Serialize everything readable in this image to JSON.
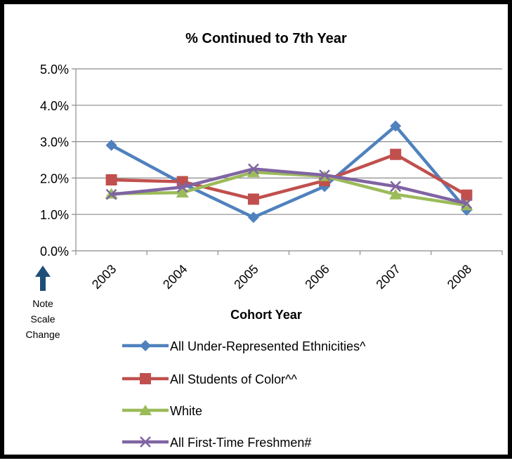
{
  "chart_data": {
    "type": "line",
    "title": "% Continued to 7th Year",
    "xlabel": "Cohort Year",
    "ylabel": "",
    "categories": [
      "2003",
      "2004",
      "2005",
      "2006",
      "2007",
      "2008"
    ],
    "y_ticks": [
      "0.0%",
      "1.0%",
      "2.0%",
      "3.0%",
      "4.0%",
      "5.0%"
    ],
    "ylim": [
      0,
      5
    ],
    "grid": true,
    "legend_position": "bottom",
    "series": [
      {
        "name": "All Under-Represented Ethnicities^",
        "color": "#4F81BD",
        "marker": "diamond",
        "values": [
          2.9,
          1.85,
          0.92,
          1.77,
          3.43,
          1.12
        ]
      },
      {
        "name": "All Students of Color^^",
        "color": "#C0504D",
        "marker": "square",
        "values": [
          1.95,
          1.9,
          1.42,
          1.93,
          2.65,
          1.53
        ]
      },
      {
        "name": "White",
        "color": "#9BBB59",
        "marker": "triangle",
        "values": [
          1.57,
          1.6,
          2.16,
          2.05,
          1.55,
          1.25
        ]
      },
      {
        "name": "All First-Time Freshmen#",
        "color": "#8064A2",
        "marker": "x",
        "values": [
          1.55,
          1.75,
          2.25,
          2.08,
          1.77,
          1.3
        ]
      }
    ]
  },
  "note": {
    "arrow_icon": "up-arrow-icon",
    "arrow_color": "#1F4E79",
    "lines": [
      "Note",
      "Scale",
      "Change"
    ]
  }
}
